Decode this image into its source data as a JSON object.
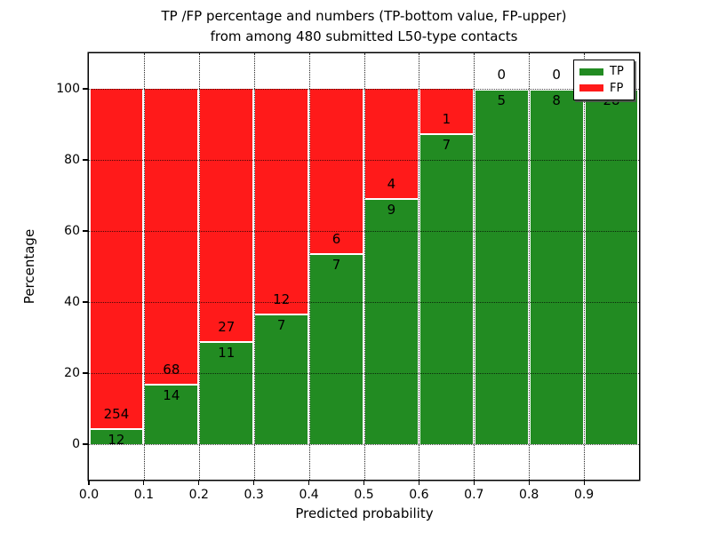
{
  "title": {
    "line1": "TP /FP percentage and numbers (TP-bottom value, FP-upper)",
    "line2": "from among 480 submitted L50-type contacts"
  },
  "axes": {
    "ylabel": "Percentage",
    "xlabel": "Predicted probability"
  },
  "colors": {
    "tp_green": "#228B22",
    "fp_red": "#FF1A1A",
    "text": "#000000",
    "background": "#FFFFFF"
  },
  "chart_data": {
    "type": "bar",
    "stacked": true,
    "normalized": "percent",
    "title": "TP /FP percentage and numbers (TP-bottom value, FP-upper) from among 480 submitted L50-type contacts",
    "xlabel": "Predicted probability",
    "ylabel": "Percentage",
    "categories": [
      "0.0-0.1",
      "0.1-0.2",
      "0.2-0.3",
      "0.3-0.4",
      "0.4-0.5",
      "0.5-0.6",
      "0.6-0.7",
      "0.7-0.8",
      "0.8-0.9",
      "0.9-1.0"
    ],
    "series": [
      {
        "name": "TP",
        "color": "#228B22",
        "values": [
          12,
          14,
          11,
          7,
          7,
          9,
          7,
          5,
          8,
          28
        ]
      },
      {
        "name": "FP",
        "color": "#FF1A1A",
        "values": [
          254,
          68,
          27,
          12,
          6,
          4,
          1,
          0,
          0,
          0
        ]
      }
    ],
    "total_contacts": 480,
    "xticks": [
      "0.0",
      "0.1",
      "0.2",
      "0.3",
      "0.4",
      "0.5",
      "0.6",
      "0.7",
      "0.8",
      "0.9"
    ],
    "yticks": [
      0,
      20,
      40,
      60,
      80,
      100
    ],
    "xlim": [
      0,
      1
    ],
    "ylim": [
      -10,
      110
    ],
    "grid": true,
    "legend_position": "upper right"
  }
}
